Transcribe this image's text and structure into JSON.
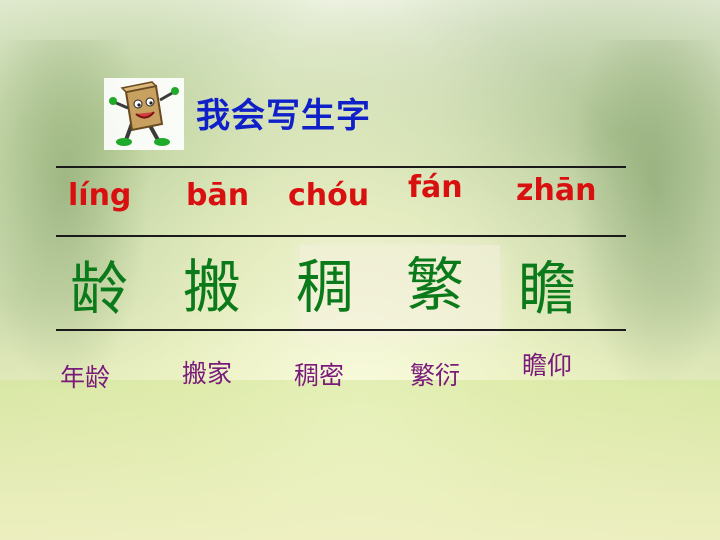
{
  "title": "我会写生字",
  "mascot_icon": "paper-bag-character-icon",
  "colors": {
    "title": "#1020c8",
    "pinyin": "#d81010",
    "character": "#0b7a1a",
    "word": "#7a1a7a"
  },
  "entries": [
    {
      "pinyin": "líng",
      "character": "龄",
      "word": "年龄"
    },
    {
      "pinyin": "bān",
      "character": "搬",
      "word": "搬家"
    },
    {
      "pinyin": "chóu",
      "character": "稠",
      "word": "稠密"
    },
    {
      "pinyin": "fán",
      "character": "繁",
      "word": "繁衍"
    },
    {
      "pinyin": "zhān",
      "character": "瞻",
      "word": "瞻仰"
    }
  ]
}
